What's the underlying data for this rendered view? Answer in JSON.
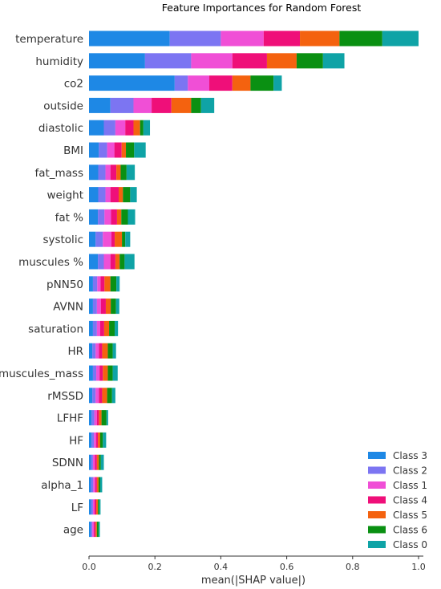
{
  "chart_data": {
    "type": "bar",
    "orientation": "horizontal",
    "stacked": true,
    "title": "Feature Importances for Random Forest",
    "xlabel": "mean(|SHAP value|)",
    "ylabel": "",
    "xlim": [
      0,
      1.0
    ],
    "xticks": [
      "0.0",
      "0.2",
      "0.4",
      "0.6",
      "0.8",
      "1.0"
    ],
    "legend_position": "lower-right",
    "grid": false,
    "categories": [
      "temperature",
      "humidity",
      "co2",
      "outside",
      "diastolic",
      "BMI",
      "fat_mass",
      "weight",
      "fat %",
      "systolic",
      "muscules %",
      "pNN50",
      "AVNN",
      "saturation",
      "HR",
      "muscules_mass",
      "rMSSD",
      "LFHF",
      "HF",
      "SDNN",
      "alpha_1",
      "LF",
      "age"
    ],
    "series": [
      {
        "name": "Class 3",
        "color": "#1e88e5",
        "values": [
          0.245,
          0.17,
          0.26,
          0.065,
          0.045,
          0.03,
          0.028,
          0.028,
          0.027,
          0.02,
          0.027,
          0.012,
          0.012,
          0.012,
          0.01,
          0.012,
          0.01,
          0.008,
          0.008,
          0.006,
          0.006,
          0.006,
          0.005
        ]
      },
      {
        "name": "Class 2",
        "color": "#7c75f2",
        "values": [
          0.155,
          0.14,
          0.04,
          0.07,
          0.035,
          0.025,
          0.022,
          0.022,
          0.02,
          0.022,
          0.018,
          0.013,
          0.012,
          0.012,
          0.01,
          0.01,
          0.01,
          0.008,
          0.007,
          0.006,
          0.007,
          0.006,
          0.005
        ]
      },
      {
        "name": "Class 1",
        "color": "#f04fd6",
        "values": [
          0.13,
          0.125,
          0.065,
          0.055,
          0.03,
          0.022,
          0.015,
          0.015,
          0.02,
          0.026,
          0.02,
          0.01,
          0.012,
          0.01,
          0.01,
          0.01,
          0.01,
          0.008,
          0.007,
          0.006,
          0.006,
          0.005,
          0.005
        ]
      },
      {
        "name": "Class 4",
        "color": "#ef0f79",
        "values": [
          0.11,
          0.105,
          0.07,
          0.06,
          0.025,
          0.022,
          0.018,
          0.025,
          0.018,
          0.01,
          0.015,
          0.012,
          0.015,
          0.012,
          0.01,
          0.01,
          0.01,
          0.006,
          0.005,
          0.006,
          0.005,
          0.005,
          0.005
        ]
      },
      {
        "name": "Class 5",
        "color": "#f4620f",
        "values": [
          0.12,
          0.09,
          0.055,
          0.06,
          0.02,
          0.013,
          0.013,
          0.013,
          0.013,
          0.022,
          0.013,
          0.018,
          0.015,
          0.015,
          0.017,
          0.015,
          0.015,
          0.008,
          0.007,
          0.006,
          0.005,
          0.005,
          0.004
        ]
      },
      {
        "name": "Class 6",
        "color": "#0a9012",
        "values": [
          0.13,
          0.08,
          0.07,
          0.03,
          0.01,
          0.025,
          0.018,
          0.022,
          0.02,
          0.01,
          0.015,
          0.018,
          0.016,
          0.017,
          0.015,
          0.015,
          0.015,
          0.015,
          0.008,
          0.006,
          0.005,
          0.004,
          0.005
        ]
      },
      {
        "name": "Class 0",
        "color": "#0fa3a6",
        "values": [
          0.11,
          0.065,
          0.025,
          0.04,
          0.02,
          0.035,
          0.025,
          0.02,
          0.022,
          0.015,
          0.03,
          0.01,
          0.01,
          0.01,
          0.01,
          0.015,
          0.01,
          0.005,
          0.01,
          0.009,
          0.006,
          0.004,
          0.004
        ]
      }
    ]
  },
  "legend_order": [
    "Class 3",
    "Class 2",
    "Class 1",
    "Class 4",
    "Class 5",
    "Class 6",
    "Class 0"
  ]
}
